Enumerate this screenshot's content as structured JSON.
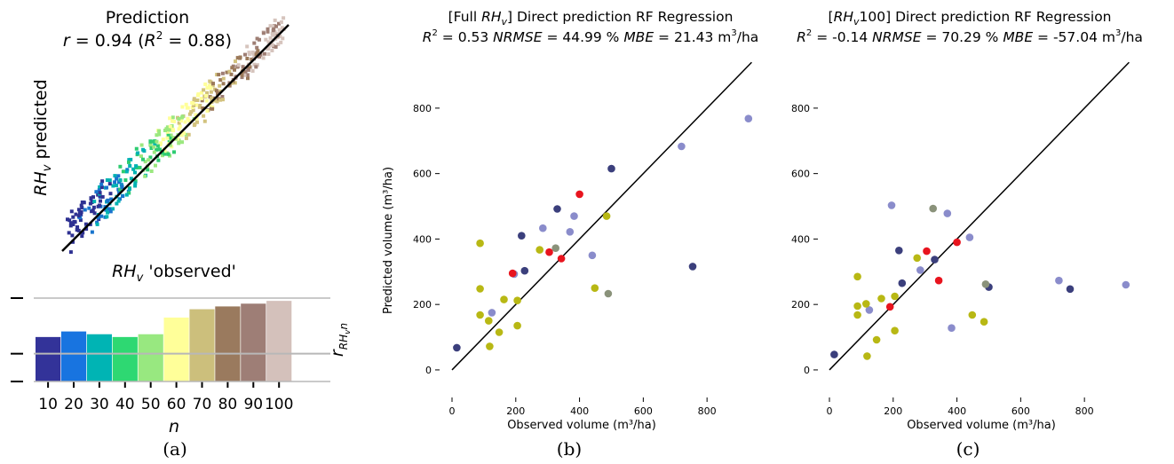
{
  "panel_a": {
    "caption": "(a)",
    "chart_data": [
      {
        "type": "scatter",
        "title": "Prediction",
        "subtitle": "r = 0.94 (R² = 0.88)",
        "ylabel": "RHv predicted",
        "xlabel": "",
        "axes_visible": false,
        "identity_line": true,
        "colormap_by_n": [
          "#2e3192",
          "#1874cd",
          "#00b2b2",
          "#2ecc71",
          "#9be87f",
          "#ffff99",
          "#d2c27e",
          "#9c7a5a",
          "#9e7e74",
          "#d6c4bd"
        ],
        "points": []
      },
      {
        "type": "bar",
        "title": "RHv 'observed'",
        "xlabel": "n",
        "ylabel": "r_{RHv n}",
        "categories": [
          "10",
          "20",
          "30",
          "40",
          "50",
          "60",
          "70",
          "80",
          "90",
          "100"
        ],
        "values": [
          0.86,
          0.88,
          0.87,
          0.86,
          0.87,
          0.93,
          0.96,
          0.97,
          0.98,
          0.99
        ],
        "colors": [
          "#333399",
          "#1874e0",
          "#00b4b4",
          "#2ed872",
          "#98e880",
          "#ffff99",
          "#ccbf7c",
          "#9a7a5e",
          "#9e7e76",
          "#d4c1bb"
        ],
        "ylim": [
          0.7,
          1.0
        ],
        "hlines": [
          0.8,
          1.0
        ],
        "grid": false
      }
    ]
  },
  "panel_b": {
    "caption": "(b)",
    "title_pre": "[Full ",
    "title_var": "RH",
    "title_var_sub": "v",
    "title_post": "]  Direct prediction RF Regression",
    "m_r2_label": "R",
    "m_r2_val": " = 0.53 ",
    "m_nrmse_label": "NRMSE",
    "m_nrmse_val": " = 44.99 % ",
    "m_mbe_label": "MBE",
    "m_mbe_val": " = 21.43 m",
    "m_unit_tail": "/ha",
    "xlabel": "Observed volume (m³/ha)",
    "ylabel": "Predicted volume (m³/ha)",
    "chart_data": {
      "type": "scatter",
      "xlim": [
        0,
        950
      ],
      "ylim": [
        -30,
        900
      ],
      "xticks": [
        0,
        200,
        400,
        600,
        800
      ],
      "yticks": [
        0,
        200,
        400,
        600,
        800
      ],
      "identity_line": true,
      "grid": false,
      "color_palette": [
        "#3b3f7c",
        "#8a8ccb",
        "#e8141e",
        "#b8b814",
        "#8a927a"
      ],
      "points": [
        {
          "x": 15,
          "y": 68,
          "c": 0
        },
        {
          "x": 218,
          "y": 410,
          "c": 0
        },
        {
          "x": 228,
          "y": 303,
          "c": 0
        },
        {
          "x": 330,
          "y": 492,
          "c": 0
        },
        {
          "x": 500,
          "y": 615,
          "c": 0
        },
        {
          "x": 755,
          "y": 316,
          "c": 0
        },
        {
          "x": 125,
          "y": 175,
          "c": 1
        },
        {
          "x": 195,
          "y": 293,
          "c": 1
        },
        {
          "x": 285,
          "y": 433,
          "c": 1
        },
        {
          "x": 370,
          "y": 422,
          "c": 1
        },
        {
          "x": 383,
          "y": 470,
          "c": 1
        },
        {
          "x": 440,
          "y": 350,
          "c": 1
        },
        {
          "x": 720,
          "y": 683,
          "c": 1
        },
        {
          "x": 930,
          "y": 768,
          "c": 1
        },
        {
          "x": 190,
          "y": 295,
          "c": 2
        },
        {
          "x": 305,
          "y": 360,
          "c": 2
        },
        {
          "x": 343,
          "y": 340,
          "c": 2
        },
        {
          "x": 400,
          "y": 537,
          "c": 2
        },
        {
          "x": 88,
          "y": 387,
          "c": 3
        },
        {
          "x": 88,
          "y": 248,
          "c": 3
        },
        {
          "x": 88,
          "y": 168,
          "c": 3
        },
        {
          "x": 115,
          "y": 150,
          "c": 3
        },
        {
          "x": 118,
          "y": 72,
          "c": 3
        },
        {
          "x": 148,
          "y": 115,
          "c": 3
        },
        {
          "x": 163,
          "y": 215,
          "c": 3
        },
        {
          "x": 205,
          "y": 212,
          "c": 3
        },
        {
          "x": 205,
          "y": 135,
          "c": 3
        },
        {
          "x": 275,
          "y": 367,
          "c": 3
        },
        {
          "x": 448,
          "y": 250,
          "c": 3
        },
        {
          "x": 485,
          "y": 470,
          "c": 3
        },
        {
          "x": 325,
          "y": 372,
          "c": 4
        },
        {
          "x": 490,
          "y": 233,
          "c": 4
        }
      ]
    }
  },
  "panel_c": {
    "caption": "(c)",
    "title_pre": "[",
    "title_var": "RH",
    "title_var_sub": "v",
    "title_post": "100]  Direct prediction RF Regression",
    "m_r2_label": "R",
    "m_r2_val": " = -0.14 ",
    "m_nrmse_label": "NRMSE",
    "m_nrmse_val": " = 70.29 % ",
    "m_mbe_label": "MBE",
    "m_mbe_val": " = -57.04 m",
    "m_unit_tail": "/ha",
    "xlabel": "Observed volume (m³/ha)",
    "ylabel": "",
    "chart_data": {
      "type": "scatter",
      "xlim": [
        0,
        950
      ],
      "ylim": [
        -30,
        900
      ],
      "xticks": [
        0,
        200,
        400,
        600,
        800
      ],
      "yticks": [
        0,
        200,
        400,
        600,
        800
      ],
      "identity_line": true,
      "grid": false,
      "color_palette": [
        "#3b3f7c",
        "#8a8ccb",
        "#e8141e",
        "#b8b814",
        "#8a927a"
      ],
      "points": [
        {
          "x": 15,
          "y": 47,
          "c": 0
        },
        {
          "x": 218,
          "y": 365,
          "c": 0
        },
        {
          "x": 228,
          "y": 265,
          "c": 0
        },
        {
          "x": 330,
          "y": 337,
          "c": 0
        },
        {
          "x": 500,
          "y": 253,
          "c": 0
        },
        {
          "x": 755,
          "y": 247,
          "c": 0
        },
        {
          "x": 125,
          "y": 183,
          "c": 1
        },
        {
          "x": 195,
          "y": 503,
          "c": 1
        },
        {
          "x": 285,
          "y": 305,
          "c": 1
        },
        {
          "x": 370,
          "y": 478,
          "c": 1
        },
        {
          "x": 383,
          "y": 128,
          "c": 1
        },
        {
          "x": 440,
          "y": 405,
          "c": 1
        },
        {
          "x": 720,
          "y": 273,
          "c": 1
        },
        {
          "x": 930,
          "y": 260,
          "c": 1
        },
        {
          "x": 190,
          "y": 193,
          "c": 2
        },
        {
          "x": 305,
          "y": 363,
          "c": 2
        },
        {
          "x": 343,
          "y": 273,
          "c": 2
        },
        {
          "x": 400,
          "y": 390,
          "c": 2
        },
        {
          "x": 88,
          "y": 285,
          "c": 3
        },
        {
          "x": 88,
          "y": 195,
          "c": 3
        },
        {
          "x": 88,
          "y": 168,
          "c": 3
        },
        {
          "x": 115,
          "y": 202,
          "c": 3
        },
        {
          "x": 118,
          "y": 42,
          "c": 3
        },
        {
          "x": 148,
          "y": 92,
          "c": 3
        },
        {
          "x": 163,
          "y": 218,
          "c": 3
        },
        {
          "x": 205,
          "y": 225,
          "c": 3
        },
        {
          "x": 205,
          "y": 120,
          "c": 3
        },
        {
          "x": 275,
          "y": 342,
          "c": 3
        },
        {
          "x": 448,
          "y": 168,
          "c": 3
        },
        {
          "x": 485,
          "y": 147,
          "c": 3
        },
        {
          "x": 325,
          "y": 493,
          "c": 4
        },
        {
          "x": 490,
          "y": 262,
          "c": 4
        }
      ]
    }
  }
}
